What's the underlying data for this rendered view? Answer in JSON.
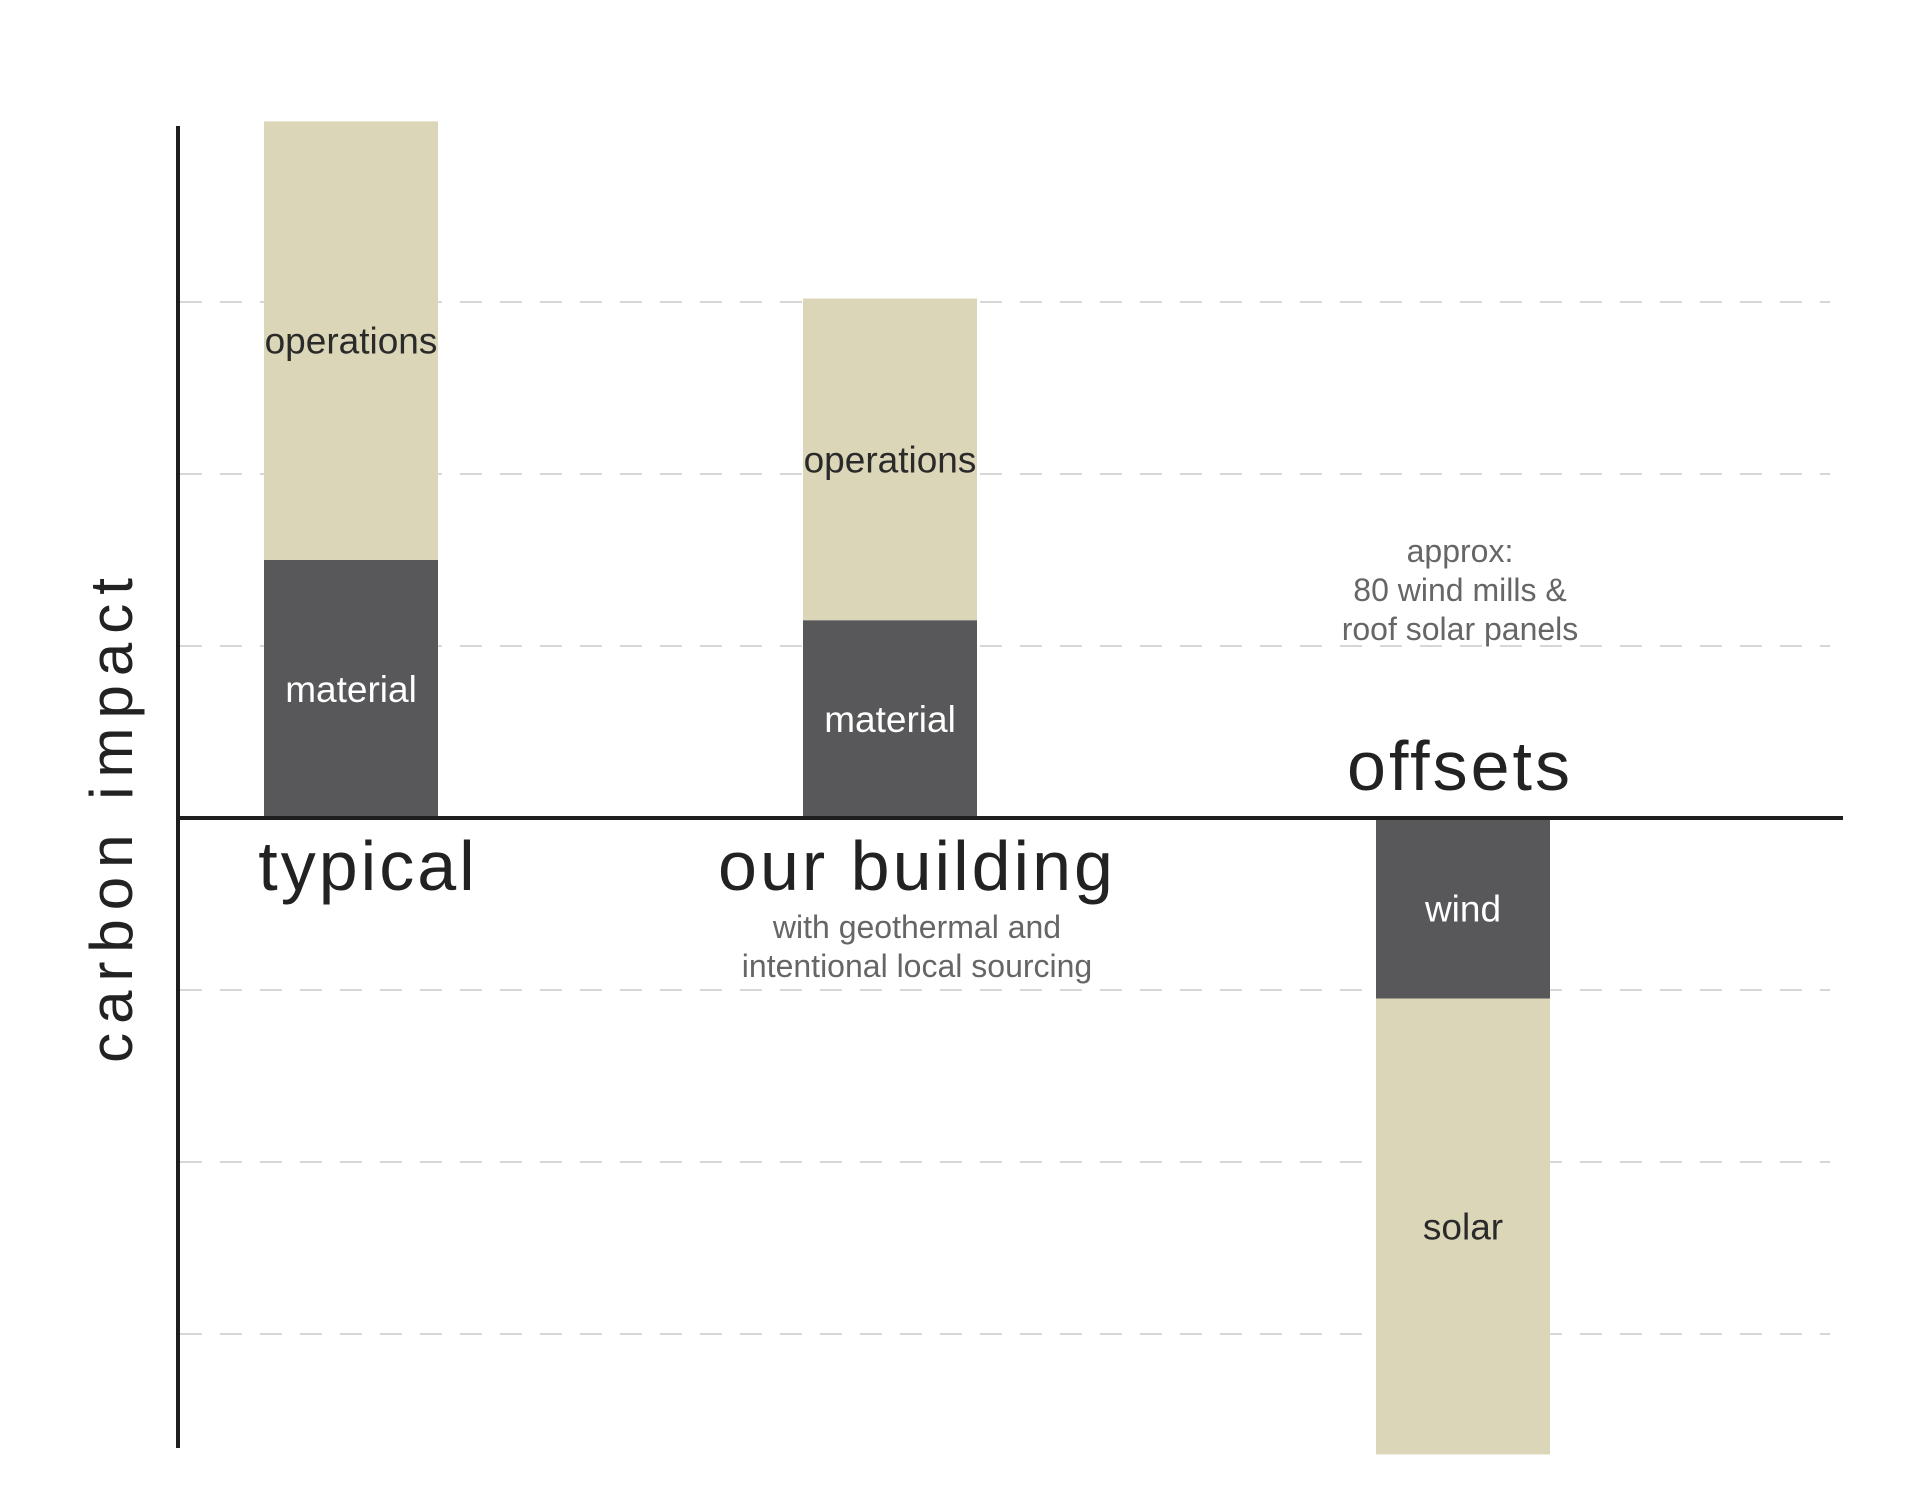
{
  "chart_data": {
    "type": "bar",
    "stacked": true,
    "ylabel": "carbon impact",
    "xlabel": "",
    "yticks_shown": false,
    "grid": "dashed horizontal",
    "ylim": [
      -3.7,
      4.0
    ],
    "categories": [
      {
        "name": "typical",
        "subtitle_lines": [],
        "title_position": "below-axis"
      },
      {
        "name": "our building",
        "subtitle_lines": [
          "with geothermal and",
          "intentional local sourcing"
        ],
        "title_position": "below-axis"
      },
      {
        "name": "offsets",
        "subtitle_lines": [
          "approx:",
          "80 wind mills &",
          "roof solar panels"
        ],
        "title_position": "above-axis"
      }
    ],
    "bars": [
      {
        "category": "typical",
        "segments": [
          {
            "label": "material",
            "value": 1.5,
            "color": "#58585a",
            "text_color": "#ffffff"
          },
          {
            "label": "operations",
            "value": 2.55,
            "color": "#dcd6b8",
            "text_color": "#2a2a2a"
          }
        ]
      },
      {
        "category": "our building",
        "segments": [
          {
            "label": "material",
            "value": 1.15,
            "color": "#58585a",
            "text_color": "#ffffff"
          },
          {
            "label": "operations",
            "value": 1.87,
            "color": "#dcd6b8",
            "text_color": "#2a2a2a"
          }
        ]
      },
      {
        "category": "offsets",
        "segments": [
          {
            "label": "wind",
            "value": -1.05,
            "color": "#58585a",
            "text_color": "#ffffff"
          },
          {
            "label": "solar",
            "value": -2.65,
            "color": "#dcd6b8",
            "text_color": "#2a2a2a"
          }
        ]
      }
    ],
    "colors": {
      "dark": "#58585a",
      "light": "#dcd6b8",
      "axis": "#1e1e1e",
      "grid": "#c8c8c8"
    }
  }
}
